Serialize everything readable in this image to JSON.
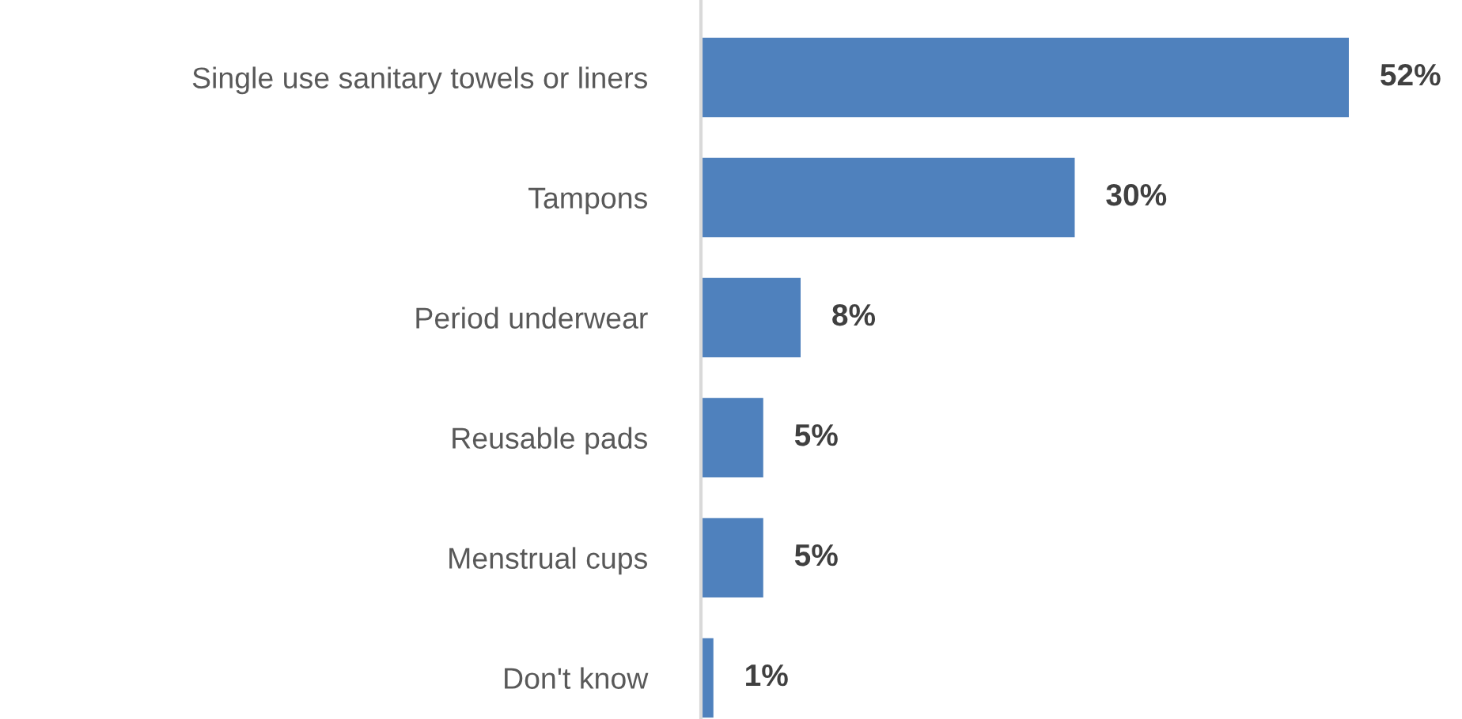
{
  "chart_data": {
    "type": "bar",
    "orientation": "horizontal",
    "categories": [
      "Single use sanitary towels or liners",
      "Tampons",
      "Period underwear",
      "Reusable pads",
      "Menstrual cups",
      "Don't know"
    ],
    "values": [
      52,
      30,
      8,
      5,
      5,
      1
    ],
    "color": "#4f81bd",
    "value_labels": [
      "52%",
      "30%",
      "8%",
      "5%",
      "5%",
      "1%"
    ],
    "grid": false,
    "legend": false
  }
}
